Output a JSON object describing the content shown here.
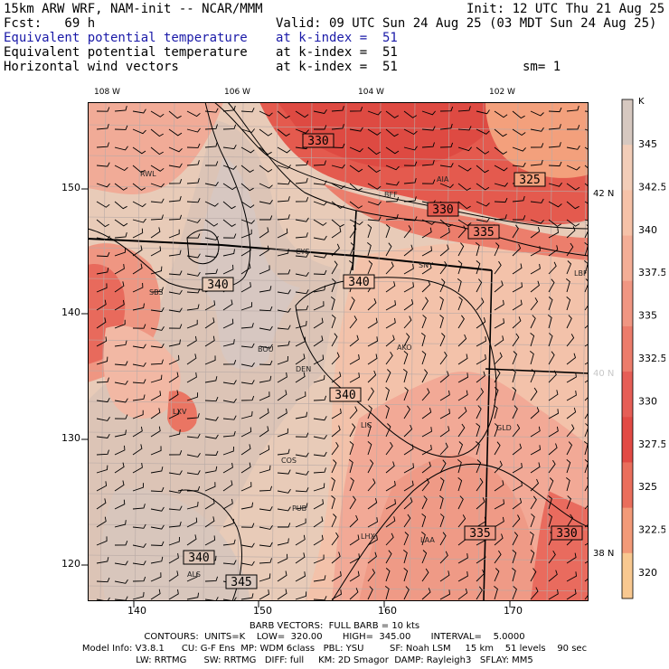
{
  "header": {
    "line1_left": "15km ARW WRF, NAM-init -- NCAR/MMM",
    "line1_right": "Init: 12 UTC Thu 21 Aug 25",
    "fcst": "Fcst:   69 h",
    "valid": "Valid: 09 UTC Sun 24 Aug 25 (03 MDT Sun 24 Aug 25)",
    "fields": [
      {
        "name": "Equivalent potential temperature",
        "level": "at k-index =  51",
        "color": "#1a1aa8"
      },
      {
        "name": "Equivalent potential temperature",
        "level": "at k-index =  51",
        "color": "#000000"
      },
      {
        "name": "Horizontal wind vectors",
        "level": "at k-index =  51",
        "color": "#000000"
      }
    ],
    "smoothing": "sm= 1"
  },
  "axes": {
    "top_lon": [
      "108 W",
      "106 W",
      "104 W",
      "102 W"
    ],
    "left_grid": [
      "150",
      "140",
      "130",
      "120"
    ],
    "bottom_grid": [
      "140",
      "150",
      "160",
      "170"
    ],
    "right_lat": [
      "42 N",
      "40 N",
      "38 N"
    ]
  },
  "stations": [
    "RWL",
    "BFF",
    "AIA",
    "CYS",
    "SNY",
    "LBF",
    "SBS",
    "BOU",
    "AKO",
    "DEN",
    "LXV",
    "LIC",
    "GLD",
    "COS",
    "PUB",
    "LHX",
    "LAA",
    "ALS"
  ],
  "contour_labels": [
    "330",
    "325",
    "330",
    "335",
    "340",
    "340",
    "340",
    "335",
    "330",
    "340",
    "345"
  ],
  "colorbar": {
    "unit": "K",
    "labels": [
      "345",
      "342.5",
      "340",
      "337.5",
      "335",
      "332.5",
      "330",
      "327.5",
      "325",
      "322.5",
      "320"
    ],
    "colors": [
      "#d6c8c0",
      "#f2cdb8",
      "#f6c2a8",
      "#f4ae96",
      "#f09682",
      "#ec7c6b",
      "#e65e56",
      "#e24a44",
      "#ea6e5c",
      "#f29a78",
      "#f8c890"
    ]
  },
  "footer": {
    "barb": "BARB VECTORS:  FULL BARB = 10 kts",
    "contours": "CONTOURS:  UNITS=K    LOW=  320.00       HIGH=  345.00       INTERVAL=    5.0000",
    "model_line1": "Model Info: V3.8.1      CU: G-F Ens  MP: WDM 6class   PBL: YSU         SF: Noah LSM     15 km    51 levels    90 sec",
    "model_line2": "LW: RRTMG      SW: RRTMG   DIFF: full     KM: 2D Smagor  DAMP: Rayleigh3   SFLAY: MM5"
  }
}
